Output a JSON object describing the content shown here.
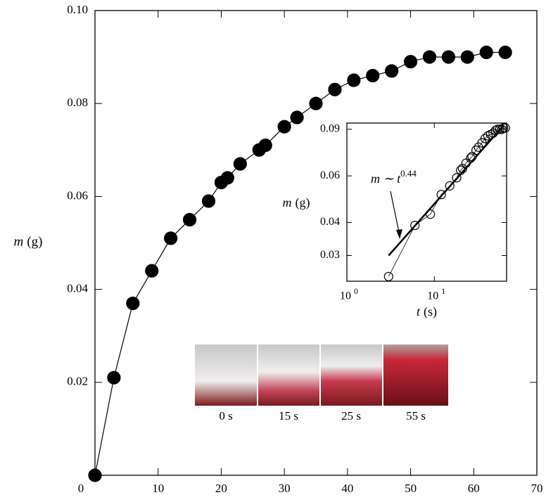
{
  "chart_data": [
    {
      "type": "line",
      "marker": "filled",
      "x": [
        0,
        3,
        6,
        9,
        12,
        15,
        18,
        20,
        21,
        23,
        26,
        27,
        30,
        32,
        35,
        38,
        41,
        44,
        47,
        50,
        53,
        56,
        59,
        62,
        65
      ],
      "series": [
        {
          "color": "#000000",
          "values": [
            0,
            0.021,
            0.037,
            0.044,
            0.051,
            0.055,
            0.059,
            0.063,
            0.064,
            0.067,
            0.07,
            0.071,
            0.075,
            0.077,
            0.08,
            0.083,
            0.085,
            0.086,
            0.087,
            0.089,
            0.09,
            0.09,
            0.09,
            0.091,
            0.091
          ]
        }
      ],
      "xlim": [
        0,
        70
      ],
      "ylim": [
        0,
        0.1
      ],
      "xticks": [
        0,
        10,
        20,
        30,
        40,
        50,
        60,
        70
      ],
      "yticks": [
        0.02,
        0.04,
        0.06,
        0.08,
        {
          "value": 0.1,
          "label": "0.10"
        }
      ],
      "xlabel_symbol": "t",
      "xlabel_unit": "(s)",
      "ylabel_symbol": "m",
      "ylabel_unit": "(g)"
    },
    {
      "type": "line",
      "marker": "open",
      "xscale": "log",
      "yscale": "log",
      "x": [
        3,
        6,
        9,
        12,
        15,
        18,
        20,
        21,
        23,
        26,
        27,
        30,
        32,
        35,
        38,
        41,
        44,
        47,
        50,
        53,
        56,
        59,
        62,
        65
      ],
      "series": [
        {
          "color": "#000000",
          "values": [
            0.025,
            0.039,
            0.043,
            0.051,
            0.055,
            0.059,
            0.063,
            0.064,
            0.067,
            0.07,
            0.071,
            0.075,
            0.077,
            0.08,
            0.083,
            0.085,
            0.086,
            0.087,
            0.089,
            0.09,
            0.09,
            0.09,
            0.091,
            0.091
          ]
        }
      ],
      "fit": {
        "x": [
          3,
          62
        ],
        "values": [
          0.03,
          0.093
        ]
      },
      "xlim": [
        1,
        67
      ],
      "ylim": [
        0.024,
        0.095
      ],
      "xticks": [
        {
          "value": 1,
          "label": "10",
          "exponent": "0"
        },
        {
          "value": 10,
          "label": "10",
          "exponent": "1"
        }
      ],
      "yticks": [
        0.03,
        0.04,
        0.06,
        0.09
      ],
      "annotation": {
        "text": "m ∼ t",
        "exponent": "0.44"
      },
      "xlabel_symbol": "t",
      "xlabel_unit": "(s)",
      "ylabel_symbol": "m",
      "ylabel_unit": "(g)"
    }
  ],
  "photos": {
    "labels": [
      "0 s",
      "15 s",
      "25 s",
      "55 s"
    ]
  }
}
